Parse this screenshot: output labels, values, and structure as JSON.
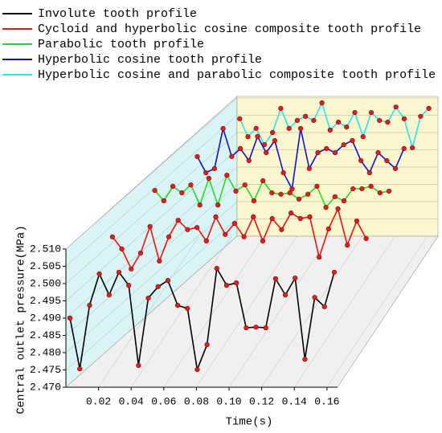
{
  "chart_data": {
    "type": "waterfall-line",
    "xlabel": "Time(s)",
    "ylabel": "Central outlet pressure(MPa)",
    "xlim": [
      0,
      0.165
    ],
    "ylim": [
      2.47,
      2.51
    ],
    "xticks": [
      0.02,
      0.04,
      0.06,
      0.08,
      {
        "value": 0.1,
        "label": "0.10"
      },
      0.12,
      0.14,
      0.16
    ],
    "yticks": [
      {
        "value": 2.47,
        "label": "2.470"
      },
      2.475,
      {
        "value": 2.48,
        "label": "2.480"
      },
      2.485,
      {
        "value": 2.49,
        "label": "2.490"
      },
      2.495,
      {
        "value": 2.5,
        "label": "2.500"
      },
      2.505,
      {
        "value": 2.51,
        "label": "2.510"
      }
    ],
    "grid": true,
    "marker_color": "#e02020",
    "series": [
      {
        "name": "Involute tooth profile",
        "color": "#000000",
        "x": [
          0.0025,
          0.0085,
          0.0145,
          0.0205,
          0.0265,
          0.0325,
          0.0385,
          0.0445,
          0.0505,
          0.0565,
          0.0625,
          0.0685,
          0.0745,
          0.0805,
          0.0865,
          0.0925,
          0.0985,
          0.1045,
          0.1105,
          0.1165,
          0.1225,
          0.1285,
          0.1345,
          0.1405,
          0.1465,
          0.1525,
          0.1585,
          0.1645
        ],
        "values": [
          2.49,
          2.4753,
          2.4937,
          2.5028,
          2.4967,
          2.5033,
          2.4995,
          2.4763,
          2.4958,
          2.4991,
          2.5009,
          2.4937,
          2.4928,
          2.4751,
          2.4823,
          2.5044,
          2.4995,
          2.5002,
          2.4872,
          2.4874,
          2.4872,
          2.5014,
          2.4967,
          2.5016,
          2.4781,
          2.496,
          2.4933,
          2.5033
        ]
      },
      {
        "name": "Cycloid and hyperbolic cosine composite tooth profile",
        "color": "#ee1111",
        "x": [
          0.0025,
          0.0085,
          0.0145,
          0.0205,
          0.0265,
          0.0325,
          0.0385,
          0.0445,
          0.0505,
          0.0565,
          0.0625,
          0.0685,
          0.0745,
          0.0805,
          0.0865,
          0.0925,
          0.0985,
          0.1045,
          0.1105,
          0.1165,
          0.1225,
          0.1285,
          0.1345,
          0.1405,
          0.1465,
          0.1525,
          0.1585,
          0.1645
        ],
        "values": [
          2.5026,
          2.4991,
          2.4933,
          2.4979,
          2.5056,
          2.4956,
          2.5026,
          2.5074,
          2.5047,
          2.5053,
          2.5014,
          2.5084,
          2.5033,
          2.5065,
          2.5026,
          2.5084,
          2.5014,
          2.5079,
          2.5047,
          2.5095,
          2.5079,
          2.5084,
          2.4967,
          2.5049,
          2.5107,
          2.5002,
          2.5072,
          2.5021
        ]
      },
      {
        "name": "Parabolic tooth profile",
        "color": "#22dd22",
        "x": [
          0.0025,
          0.0085,
          0.0145,
          0.0205,
          0.0265,
          0.0325,
          0.0385,
          0.0445,
          0.0505,
          0.0565,
          0.0625,
          0.0685,
          0.0745,
          0.0805,
          0.0865,
          0.0925,
          0.0985,
          0.1045,
          0.1105,
          0.1165,
          0.1225,
          0.1285,
          0.1345,
          0.1405,
          0.1465,
          0.1525,
          0.1585
        ],
        "values": [
          2.5051,
          2.5021,
          2.5063,
          2.5044,
          2.5067,
          2.5009,
          2.5086,
          2.5009,
          2.5095,
          2.5049,
          2.5067,
          2.5021,
          2.5079,
          2.5044,
          2.504,
          2.5044,
          2.5026,
          2.504,
          2.5063,
          2.5002,
          2.5033,
          2.5021,
          2.5056,
          2.5056,
          2.5063,
          2.5044,
          2.5049
        ]
      },
      {
        "name": "Hyperbolic cosine tooth profile",
        "color": "#1111cc",
        "x": [
          0.0025,
          0.0085,
          0.0145,
          0.0205,
          0.0265,
          0.0325,
          0.0385,
          0.0445,
          0.0505,
          0.0565,
          0.0625,
          0.0685,
          0.0745,
          0.0805,
          0.0865,
          0.0925,
          0.0985,
          0.1045,
          0.1105,
          0.1165,
          0.1225,
          0.1285,
          0.1345,
          0.1405,
          0.1465
        ],
        "values": [
          2.504,
          2.4993,
          2.5005,
          2.5121,
          2.504,
          2.5063,
          2.5028,
          2.5098,
          2.5051,
          2.5086,
          2.4993,
          2.4946,
          2.5121,
          2.5005,
          2.5051,
          2.5063,
          2.5051,
          2.5074,
          2.5086,
          2.5028,
          2.4993,
          2.5051,
          2.5028,
          2.5005,
          2.5063
        ]
      },
      {
        "name": "Hyperbolic cosine and parabolic composite tooth profile",
        "color": "#22e5ee",
        "x": [
          0.0025,
          0.0085,
          0.0145,
          0.0205,
          0.0265,
          0.0325,
          0.0385,
          0.0445,
          0.0505,
          0.0565,
          0.0625,
          0.0685,
          0.0745,
          0.0805,
          0.0865,
          0.0925,
          0.0985,
          0.1045,
          0.1105,
          0.1165,
          0.1225,
          0.1285,
          0.1345,
          0.1405
        ],
        "values": [
          2.504,
          2.4988,
          2.5012,
          2.4965,
          2.5,
          2.507,
          2.5012,
          2.5035,
          2.5047,
          2.5035,
          2.5086,
          2.5007,
          2.503,
          2.5016,
          2.5058,
          2.4988,
          2.5058,
          2.5035,
          2.503,
          2.5074,
          2.504,
          2.4956,
          2.5047,
          2.507
        ]
      }
    ]
  }
}
